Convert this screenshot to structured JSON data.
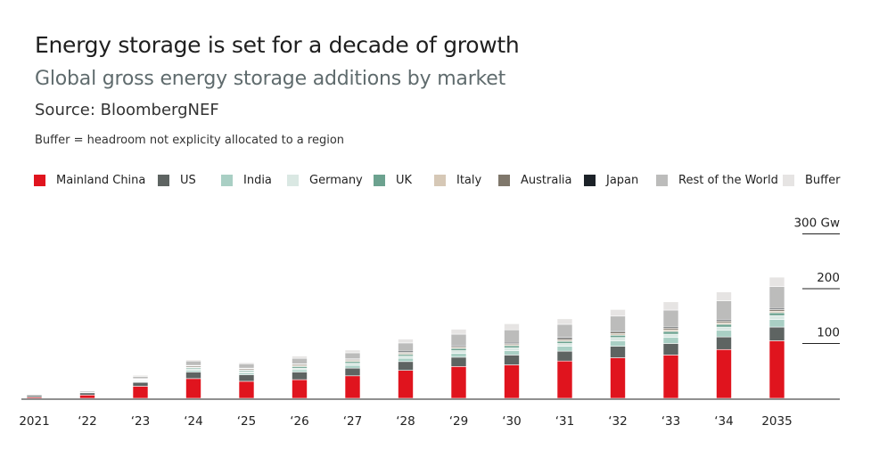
{
  "header": {
    "title": "Energy storage is set for a decade of growth",
    "subtitle": "Global gross energy storage additions by market",
    "source": "Source: BloombergNEF",
    "note": "Buffer = headroom not explicity allocated to a region"
  },
  "chart_data": {
    "type": "bar",
    "stacked": true,
    "title": "Energy storage is set for a decade of growth",
    "subtitle": "Global gross energy storage additions by market",
    "categories": [
      "2021",
      "‘22",
      "‘23",
      "‘24",
      "‘25",
      "‘26",
      "‘27",
      "‘28",
      "‘29",
      "‘30",
      "‘31",
      "‘32",
      "‘33",
      "‘34",
      "2035"
    ],
    "y_ticks": [
      {
        "value": 100,
        "label": "100"
      },
      {
        "value": 200,
        "label": "200"
      },
      {
        "value": 300,
        "label": "300 Gw"
      }
    ],
    "ylim": [
      0,
      300
    ],
    "legend_position": "top",
    "grid": false,
    "series": [
      {
        "name": "Mainland China",
        "color": "#e0141e",
        "values": [
          2,
          6,
          22,
          36,
          31,
          34,
          41,
          51,
          58,
          61,
          68,
          74,
          79,
          89,
          105
        ]
      },
      {
        "name": "US",
        "color": "#5e6462",
        "values": [
          3,
          4,
          7,
          12,
          12,
          14,
          14,
          16,
          17,
          18,
          18,
          21,
          21,
          23,
          25
        ]
      },
      {
        "name": "India",
        "color": "#a9cfc4",
        "values": [
          0,
          0,
          1,
          3,
          3,
          4,
          5,
          6,
          7,
          8,
          9,
          10,
          11,
          12,
          14
        ]
      },
      {
        "name": "Germany",
        "color": "#dae8e3",
        "values": [
          0,
          1,
          2,
          3,
          3,
          3,
          4,
          4,
          5,
          5,
          5,
          6,
          6,
          6,
          7
        ]
      },
      {
        "name": "UK",
        "color": "#6ca28f",
        "values": [
          0,
          0,
          1,
          2,
          2,
          3,
          3,
          3,
          4,
          4,
          4,
          4,
          5,
          5,
          5
        ]
      },
      {
        "name": "Italy",
        "color": "#d6c8b6",
        "values": [
          0,
          0,
          1,
          1,
          1,
          2,
          2,
          2,
          2,
          2,
          2,
          3,
          3,
          3,
          3
        ]
      },
      {
        "name": "Australia",
        "color": "#7f776b",
        "values": [
          0,
          0,
          1,
          2,
          2,
          2,
          2,
          2,
          2,
          2,
          3,
          3,
          3,
          3,
          3
        ]
      },
      {
        "name": "Japan",
        "color": "#1c2228",
        "values": [
          0,
          0,
          1,
          1,
          1,
          1,
          1,
          2,
          2,
          2,
          2,
          2,
          2,
          2,
          2
        ]
      },
      {
        "name": "Rest of the World",
        "color": "#bcbcbb",
        "values": [
          2,
          2,
          4,
          8,
          8,
          10,
          11,
          15,
          20,
          23,
          24,
          27,
          31,
          35,
          40
        ]
      },
      {
        "name": "Buffer",
        "color": "#e6e4e3",
        "values": [
          0,
          0,
          2,
          2,
          2,
          4,
          5,
          7,
          9,
          11,
          10,
          12,
          15,
          16,
          17
        ]
      }
    ]
  }
}
